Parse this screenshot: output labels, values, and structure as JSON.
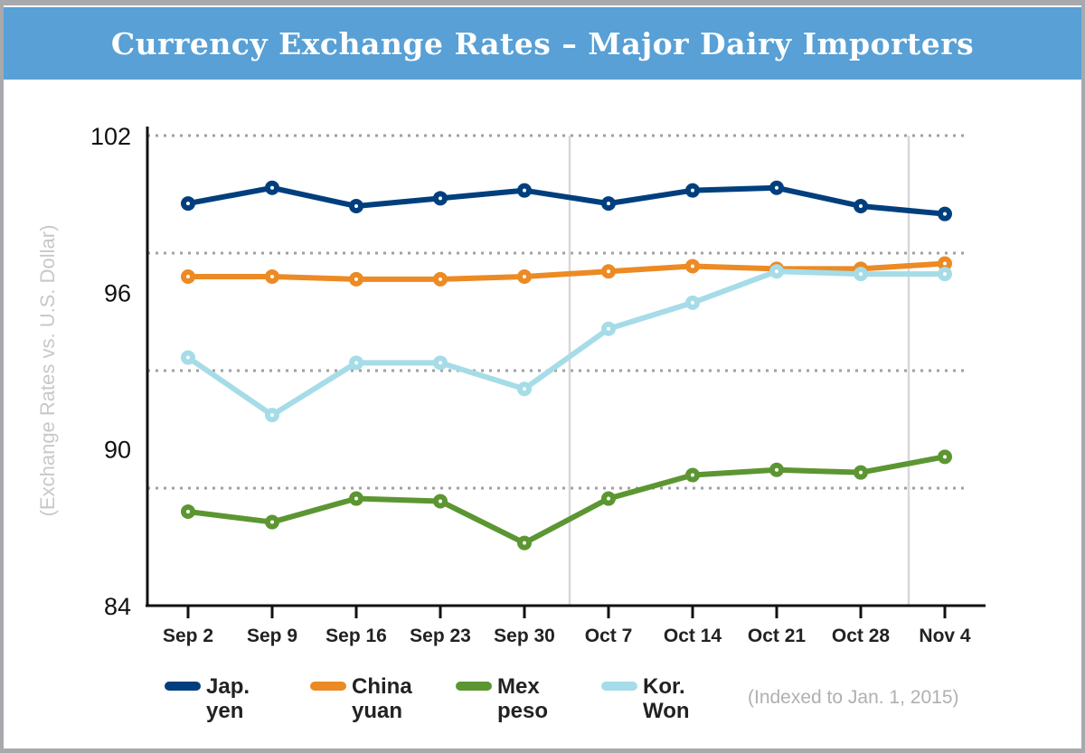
{
  "chart_data": {
    "type": "line",
    "title": "Currency Exchange Rates – Major Dairy Importers",
    "ylabel": "(Exchange Rates vs. U.S. Dollar)",
    "xlabel": "",
    "note": "(Indexed to Jan. 1, 2015)",
    "ylim": [
      84,
      102
    ],
    "yticks": [
      102,
      96,
      90,
      84
    ],
    "grid": "dotted horizontal",
    "legend_position": "bottom",
    "categories": [
      "Sep 2",
      "Sep 9",
      "Sep 16",
      "Sep 23",
      "Sep 30",
      "Oct 7",
      "Oct 14",
      "Oct 21",
      "Oct 28",
      "Nov 4"
    ],
    "series": [
      {
        "name": "Jap.\nyen",
        "color": "#003f7d",
        "values": [
          99.4,
          100.0,
          99.3,
          99.6,
          99.9,
          99.4,
          99.9,
          100.0,
          99.3,
          99.0
        ]
      },
      {
        "name": "China\nyuan",
        "color": "#ec8a24",
        "values": [
          96.6,
          96.6,
          96.5,
          96.5,
          96.6,
          96.8,
          97.0,
          96.9,
          96.9,
          97.1
        ]
      },
      {
        "name": "Mex\npeso",
        "color": "#5c9632",
        "values": [
          87.6,
          87.2,
          88.1,
          88.0,
          86.4,
          88.1,
          89.0,
          89.2,
          89.1,
          89.7
        ]
      },
      {
        "name": "Kor.\nWon",
        "color": "#a5dce8",
        "values": [
          93.5,
          91.3,
          93.3,
          93.3,
          92.3,
          94.6,
          95.6,
          96.8,
          96.7,
          96.7
        ]
      }
    ]
  }
}
